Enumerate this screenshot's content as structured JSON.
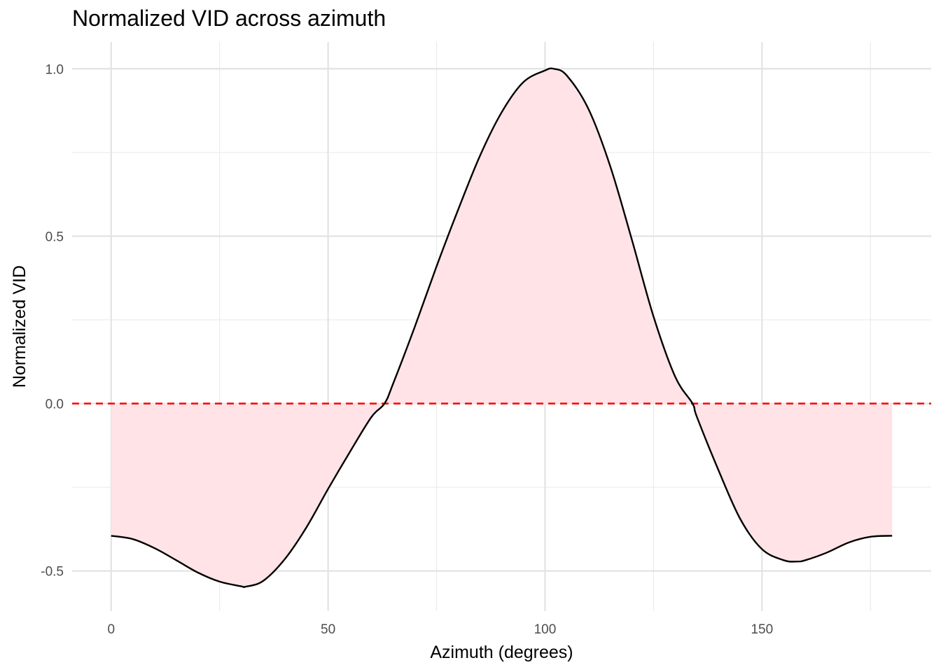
{
  "chart_data": {
    "type": "area",
    "title": "Normalized VID across azimuth",
    "xlabel": "Azimuth (degrees)",
    "ylabel": "Normalized VID",
    "xlim": [
      -9,
      189
    ],
    "ylim": [
      -0.62,
      1.08
    ],
    "x_ticks": [
      0,
      50,
      100,
      150
    ],
    "x_tick_labels": [
      "0",
      "50",
      "100",
      "150"
    ],
    "y_ticks": [
      -0.5,
      0.0,
      0.5,
      1.0
    ],
    "y_tick_labels": [
      "-0.5",
      "0.0",
      "0.5",
      "1.0"
    ],
    "grid": true,
    "reference_line": {
      "y": 0.0,
      "style": "dashed",
      "color": "#ff0000"
    },
    "fill_colors": {
      "positive": "#e3e3ff",
      "negative": "#ffe3e6"
    },
    "line_color": "#000000",
    "series": [
      {
        "x": [
          0,
          5,
          10,
          15,
          20,
          25,
          30,
          31,
          35,
          40,
          45,
          50,
          55,
          60,
          63,
          65,
          70,
          75,
          80,
          85,
          90,
          95,
          100,
          102,
          105,
          110,
          115,
          120,
          125,
          130,
          134,
          135,
          140,
          145,
          150,
          155,
          158,
          160,
          165,
          170,
          175,
          180
        ],
        "y": [
          -0.395,
          -0.405,
          -0.432,
          -0.468,
          -0.505,
          -0.532,
          -0.546,
          -0.547,
          -0.53,
          -0.465,
          -0.37,
          -0.255,
          -0.145,
          -0.04,
          0.0,
          0.06,
          0.23,
          0.41,
          0.58,
          0.74,
          0.87,
          0.96,
          0.995,
          1.0,
          0.98,
          0.88,
          0.71,
          0.49,
          0.26,
          0.08,
          0.0,
          -0.04,
          -0.2,
          -0.345,
          -0.435,
          -0.468,
          -0.472,
          -0.468,
          -0.445,
          -0.415,
          -0.398,
          -0.395
        ]
      }
    ]
  }
}
